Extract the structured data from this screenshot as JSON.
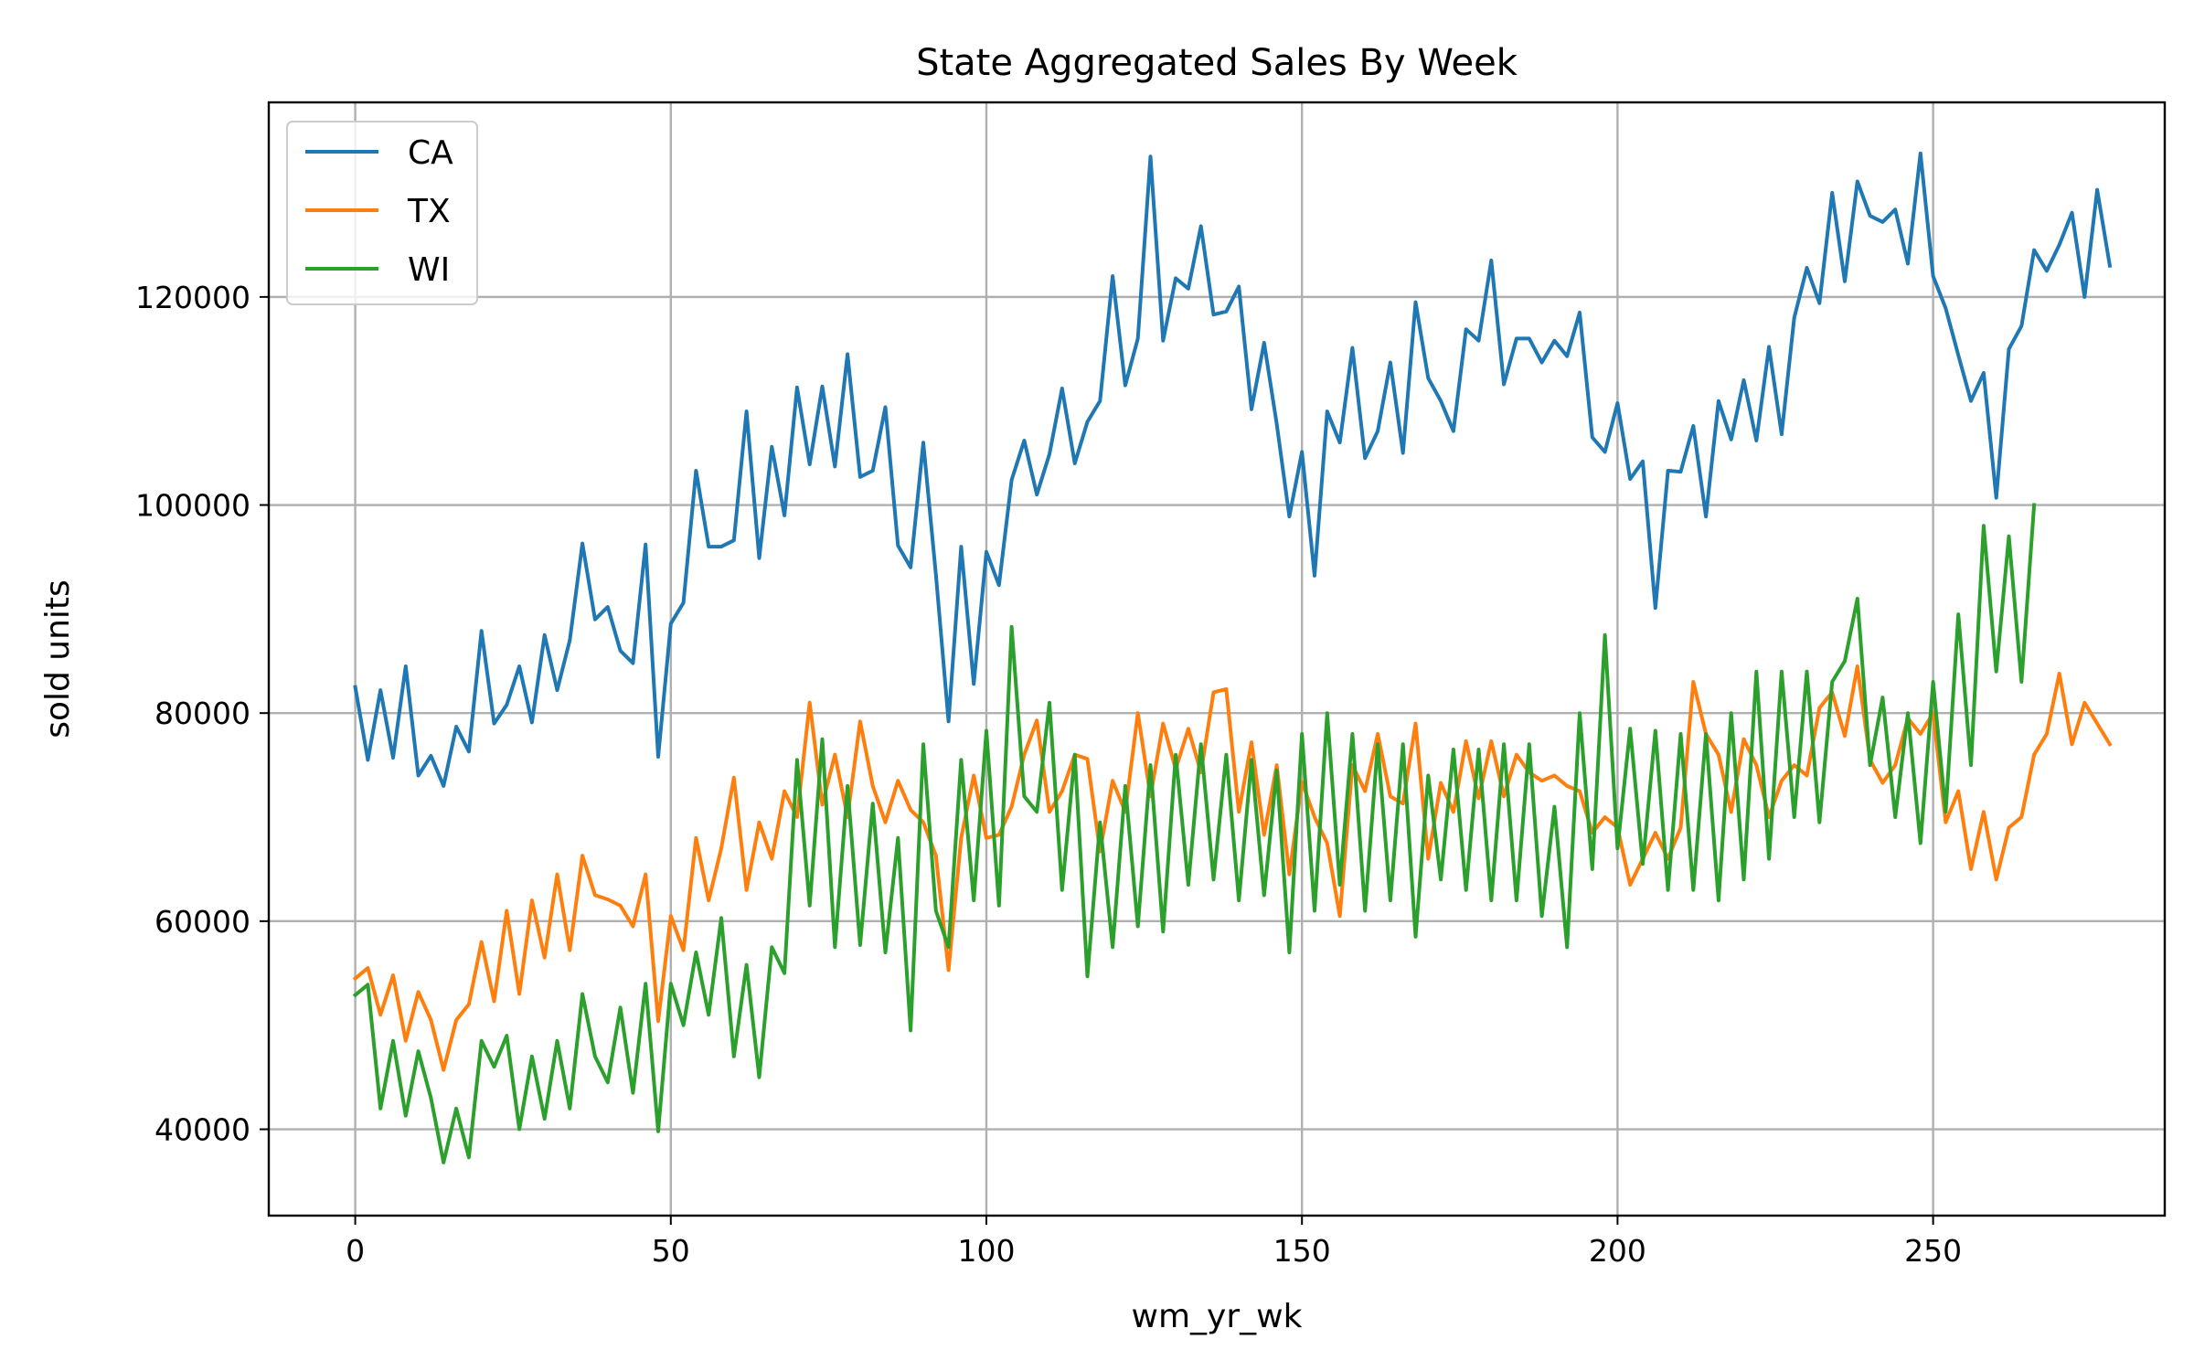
{
  "chart_data": {
    "type": "line",
    "title": "State Aggregated Sales By Week",
    "xlabel": "wm_yr_wk",
    "ylabel": "sold units",
    "xlim": [
      -13.7,
      286.7
    ],
    "ylim": [
      31700,
      138700
    ],
    "xticks": [
      0,
      50,
      100,
      150,
      200,
      250
    ],
    "yticks": [
      40000,
      60000,
      80000,
      100000,
      120000
    ],
    "grid": true,
    "legend_position": "upper left",
    "colors": {
      "CA": "#1f77b4",
      "TX": "#ff7f0e",
      "WI": "#2ca02c"
    },
    "series": [
      {
        "name": "CA",
        "sample_step": 2,
        "values": [
          82500,
          75500,
          82200,
          75700,
          84500,
          74000,
          75900,
          73000,
          78700,
          76300,
          87900,
          79000,
          80800,
          84500,
          79100,
          87500,
          82200,
          87000,
          96300,
          89000,
          90200,
          86000,
          84800,
          96200,
          75800,
          88600,
          90600,
          103300,
          96000,
          96000,
          96600,
          109000,
          94900,
          105600,
          99000,
          111300,
          103900,
          111400,
          103700,
          114500,
          102700,
          103300,
          109400,
          96100,
          94000,
          106000,
          93300,
          79200,
          96000,
          82800,
          95500,
          92300,
          102400,
          106200,
          101000,
          104900,
          111200,
          104000,
          108000,
          110000,
          122000,
          111500,
          116000,
          133500,
          115800,
          121800,
          120800,
          126800,
          118300,
          118600,
          121000,
          109200,
          115600,
          107800,
          98900,
          105100,
          93200,
          109000,
          106000,
          115100,
          104500,
          107100,
          113700,
          105000,
          119500,
          112200,
          110000,
          107100,
          116900,
          115800,
          123500,
          111600,
          116000,
          116000,
          113700,
          115800,
          114300,
          118500,
          106500,
          105100,
          109800,
          102500,
          104200,
          90100,
          103300,
          103200,
          107600,
          98900,
          110000,
          106300,
          112000,
          106200,
          115200,
          106800,
          118000,
          122800,
          119400,
          130000,
          121500,
          131100,
          127800,
          127200,
          128400,
          123200,
          133800,
          122000,
          118900,
          114400,
          110000,
          112700,
          100700,
          115000,
          117200,
          124500,
          122500,
          125000,
          128100,
          120000,
          130300,
          123000
        ]
      },
      {
        "name": "TX",
        "sample_step": 2,
        "values": [
          54500,
          55500,
          51000,
          54800,
          48500,
          53200,
          50500,
          45700,
          50500,
          52000,
          58000,
          52300,
          61000,
          53000,
          62000,
          56500,
          64500,
          57200,
          66300,
          62500,
          62100,
          61500,
          59500,
          64500,
          50400,
          60500,
          57200,
          68000,
          62000,
          67000,
          73800,
          63000,
          69500,
          66000,
          72500,
          70000,
          81000,
          71200,
          76000,
          70000,
          79200,
          73000,
          69500,
          73500,
          70700,
          69500,
          66300,
          55300,
          68000,
          74000,
          68000,
          68300,
          71000,
          76000,
          79300,
          70500,
          72500,
          76000,
          75600,
          66700,
          73500,
          70500,
          80000,
          72000,
          79000,
          74600,
          78500,
          74300,
          82000,
          82300,
          70500,
          77200,
          68300,
          75000,
          64500,
          73400,
          70000,
          67500,
          60500,
          75000,
          72500,
          78000,
          72000,
          71300,
          79000,
          66000,
          73300,
          70500,
          77300,
          71800,
          77300,
          72000,
          76000,
          74300,
          73500,
          74000,
          73000,
          72500,
          68500,
          70000,
          69000,
          63500,
          66000,
          68500,
          66000,
          69000,
          83000,
          78000,
          76000,
          70500,
          77500,
          75000,
          70000,
          73500,
          75000,
          74000,
          80500,
          82000,
          77800,
          84500,
          75500,
          73300,
          75000,
          79500,
          78000,
          80000,
          69500,
          72500,
          65000,
          70500,
          64000,
          69000,
          70000,
          76000,
          78000,
          83800,
          77000,
          81000,
          79000,
          77000
        ]
      },
      {
        "name": "WI",
        "sample_step": 2,
        "values": [
          52900,
          53900,
          42000,
          48500,
          41300,
          47500,
          43000,
          36800,
          42000,
          37300,
          48500,
          46000,
          49000,
          40000,
          47000,
          41000,
          48500,
          42000,
          53000,
          47000,
          44500,
          51700,
          43500,
          54000,
          39800,
          54000,
          50000,
          57000,
          51000,
          60300,
          47000,
          55800,
          45000,
          57500,
          55000,
          75500,
          61500,
          77500,
          57500,
          73000,
          57700,
          71300,
          57000,
          68000,
          49500,
          77000,
          61000,
          57500,
          75500,
          62000,
          78300,
          61500,
          88300,
          72000,
          70500,
          81000,
          63000,
          76000,
          54700,
          69500,
          57500,
          73000,
          59500,
          75000,
          59000,
          76000,
          63500,
          77000,
          64000,
          76000,
          62000,
          75500,
          62500,
          74500,
          57000,
          78000,
          61000,
          80000,
          63500,
          78000,
          61000,
          77000,
          62000,
          77000,
          58500,
          74000,
          64000,
          76500,
          63000,
          76500,
          62000,
          77000,
          62000,
          77000,
          60500,
          71000,
          57500,
          80000,
          65000,
          87500,
          67000,
          78500,
          65500,
          78300,
          63000,
          78000,
          63000,
          78000,
          62000,
          80000,
          64000,
          84000,
          66000,
          84000,
          70000,
          84000,
          69500,
          83000,
          85000,
          91000,
          75000,
          81500,
          70000,
          80000,
          67500,
          83000,
          70500,
          89500,
          75000,
          98000,
          84000,
          97000,
          83000,
          100000
        ]
      }
    ]
  }
}
